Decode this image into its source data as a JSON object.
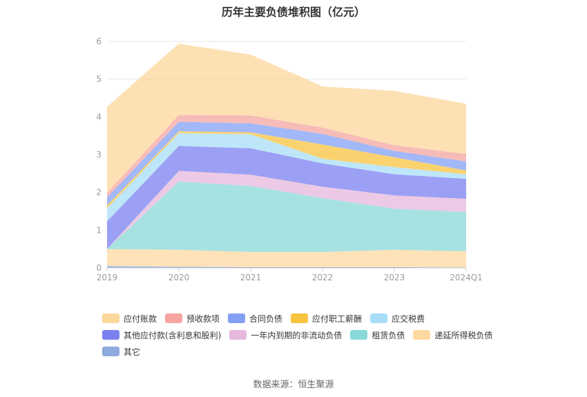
{
  "page": {
    "title": "历年主要负债堆积图（亿元）",
    "source": "数据来源：恒生聚源"
  },
  "chart_data": {
    "type": "area",
    "stacked": true,
    "title": "历年主要负债堆积图（亿元）",
    "categories": [
      "2019",
      "2020",
      "2021",
      "2022",
      "2023",
      "2024Q1"
    ],
    "ylim": [
      0,
      6
    ],
    "yticks": [
      "0",
      "1",
      "2",
      "3",
      "4",
      "5",
      "6"
    ],
    "grid": true,
    "legend_position": "bottom-left",
    "series": [
      {
        "name": "其它",
        "color": "#8FAADC",
        "values": [
          0.05,
          0.03,
          0.02,
          0.02,
          0.02,
          0.01
        ]
      },
      {
        "name": "递延所得税负债",
        "color": "#FFD8A0",
        "values": [
          0.0,
          0.0,
          0.0,
          0.0,
          0.0,
          0.0
        ]
      },
      {
        "name": "租赁负债",
        "color": "#8AD8D8",
        "values": [
          0.0,
          1.81,
          1.75,
          1.43,
          1.09,
          1.04
        ]
      },
      {
        "name": "一年内到期的非流动负债",
        "color": "#E6B8DC",
        "values": [
          0.0,
          0.28,
          0.3,
          0.3,
          0.35,
          0.35
        ]
      },
      {
        "name": "其他应付款(含利息和股利)",
        "color": "#7B80F0",
        "values": [
          0.73,
          0.66,
          0.7,
          0.62,
          0.56,
          0.53
        ]
      },
      {
        "name": "应交税费",
        "color": "#A8DDF7",
        "values": [
          0.35,
          0.34,
          0.37,
          0.12,
          0.19,
          0.12
        ]
      },
      {
        "name": "应付职工薪酬",
        "color": "#F8C440",
        "values": [
          0.07,
          0.05,
          0.05,
          0.38,
          0.26,
          0.1
        ]
      },
      {
        "name": "合同负债",
        "color": "#84A0F5",
        "values": [
          0.22,
          0.25,
          0.24,
          0.28,
          0.17,
          0.24
        ]
      },
      {
        "name": "预收款项",
        "color": "#F5A6A0",
        "values": [
          0.12,
          0.18,
          0.21,
          0.17,
          0.15,
          0.2
        ]
      },
      {
        "name": "应付账款",
        "color": "#FCD79B",
        "values": [
          2.28,
          1.89,
          1.61,
          1.09,
          1.44,
          1.33
        ]
      }
    ],
    "base_values": [
      0.45,
      0.45,
      0.4,
      0.4,
      0.46,
      0.43
    ]
  },
  "legend": {
    "rows": [
      [
        {
          "label": "应付账款",
          "color": "#FCD79B"
        },
        {
          "label": "预收款项",
          "color": "#F5A6A0"
        },
        {
          "label": "合同负债",
          "color": "#84A0F5"
        },
        {
          "label": "应付职工薪酬",
          "color": "#F8C440"
        },
        {
          "label": "应交税费",
          "color": "#A8DDF7"
        }
      ],
      [
        {
          "label": "其他应付款(含利息和股利)",
          "color": "#7B80F0"
        },
        {
          "label": "一年内到期的非流动负债",
          "color": "#E6B8DC"
        },
        {
          "label": "租赁负债",
          "color": "#8AD8D8"
        },
        {
          "label": "递延所得税负债",
          "color": "#FFD8A0"
        }
      ],
      [
        {
          "label": "其它",
          "color": "#8FAADC"
        }
      ]
    ]
  }
}
